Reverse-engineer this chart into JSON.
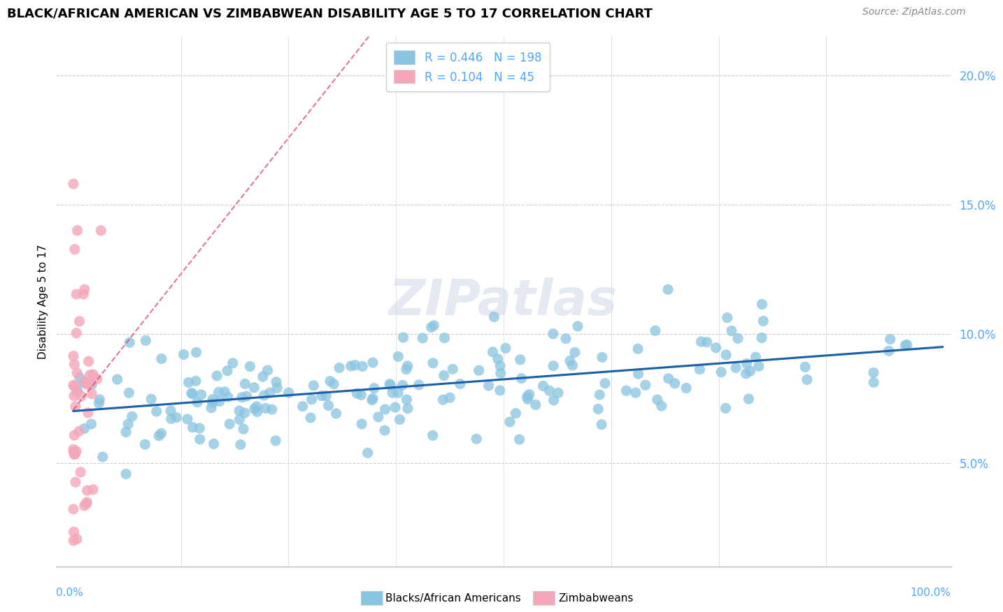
{
  "title": "BLACK/AFRICAN AMERICAN VS ZIMBABWEAN DISABILITY AGE 5 TO 17 CORRELATION CHART",
  "source": "Source: ZipAtlas.com",
  "ylabel": "Disability Age 5 to 17",
  "blue_color": "#89c4e1",
  "pink_color": "#f4a7b9",
  "blue_line_color": "#1a5fa8",
  "pink_line_color": "#d44060",
  "legend_R_blue": "0.446",
  "legend_N_blue": "198",
  "legend_R_pink": "0.104",
  "legend_N_pink": "45",
  "tick_color": "#4da6ff",
  "label_color": "#000000",
  "watermark_text": "ZIPatlas",
  "legend_label_blue": "Blacks/African Americans",
  "legend_label_pink": "Zimbabweans",
  "xlim": [
    -0.02,
    1.02
  ],
  "ylim": [
    0.01,
    0.215
  ],
  "y_ticks": [
    0.05,
    0.1,
    0.15,
    0.2
  ],
  "y_tick_labels": [
    "5.0%",
    "10.0%",
    "15.0%",
    "20.0%"
  ]
}
